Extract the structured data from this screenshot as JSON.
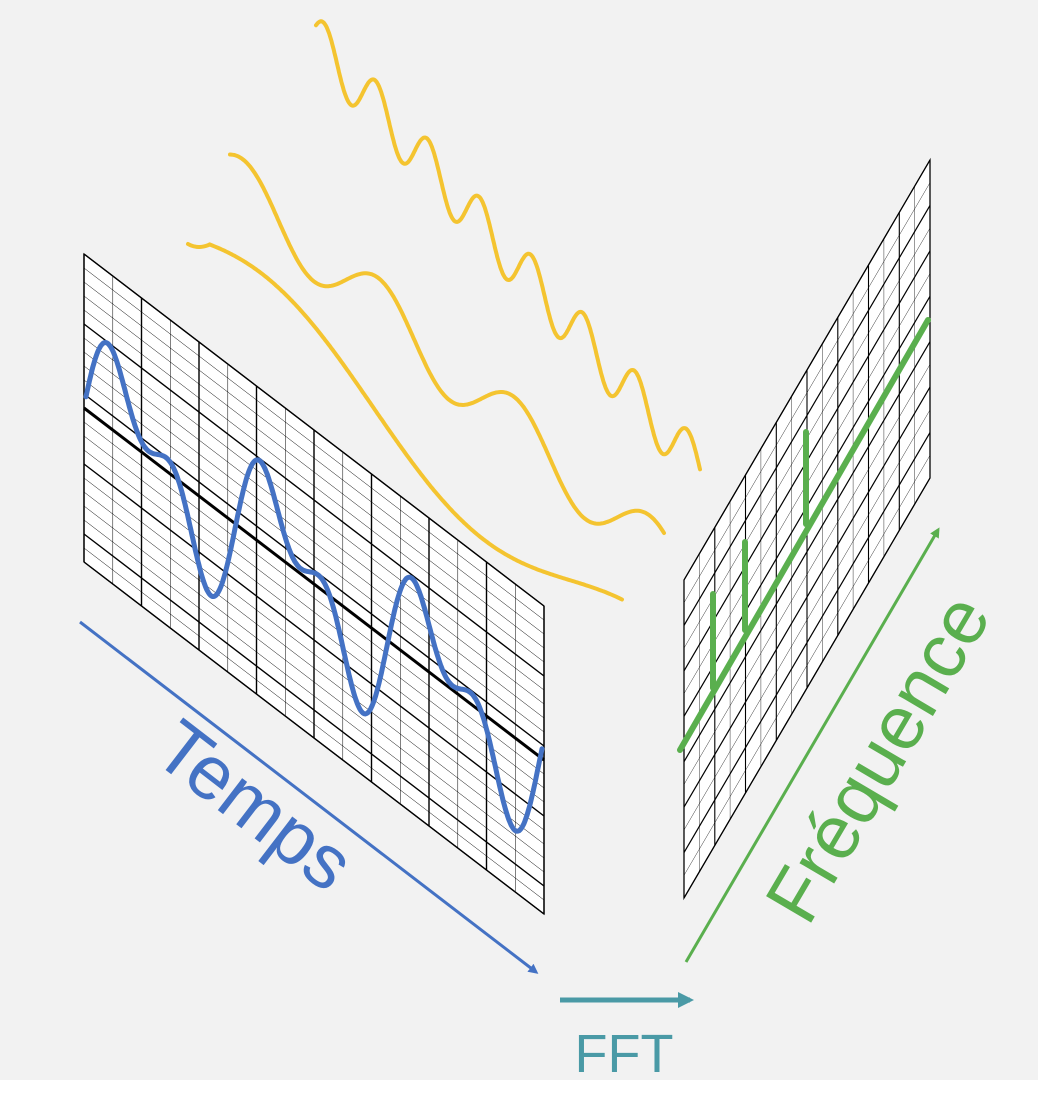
{
  "labels": {
    "time_axis": "Temps",
    "frequency_axis": "Fréquence",
    "transform": "FFT"
  },
  "colors": {
    "background": "#f2f2f2",
    "time_signal": "#4472c4",
    "component_waves": "#f4c430",
    "spectrum": "#5aaf4e",
    "transform": "#4a9aa6",
    "grid": "#000000"
  },
  "icons": [
    "time-axis-arrow-icon",
    "frequency-axis-arrow-icon",
    "fft-arrow-icon"
  ]
}
